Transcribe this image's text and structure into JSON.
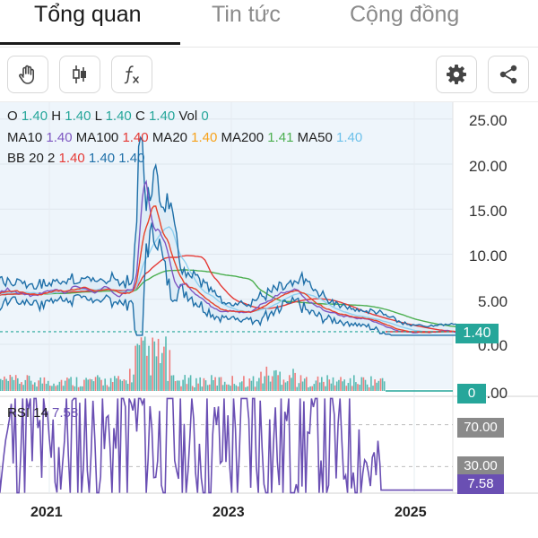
{
  "tabs": [
    {
      "label": "Tổng quan",
      "active": true
    },
    {
      "label": "Tin tức",
      "active": false
    },
    {
      "label": "Cộng đồng",
      "active": false
    }
  ],
  "toolbar": {
    "left": [
      {
        "name": "hand-cursor-icon"
      },
      {
        "name": "candlestick-icon"
      },
      {
        "name": "function-icon"
      }
    ],
    "right": [
      {
        "name": "gear-icon"
      },
      {
        "name": "share-icon"
      }
    ]
  },
  "legend": {
    "ohlc": {
      "o_label": "O",
      "o": "1.40",
      "h_label": "H",
      "h": "1.40",
      "l_label": "L",
      "l": "1.40",
      "c_label": "C",
      "c": "1.40",
      "vol_label": "Vol",
      "vol": "0"
    },
    "ma": {
      "ma10_label": "MA10",
      "ma10": "1.40",
      "ma100_label": "MA100",
      "ma100": "1.40",
      "ma20_label": "MA20",
      "ma20": "1.40",
      "ma200_label": "MA200",
      "ma200": "1.41",
      "ma50_label": "MA50",
      "ma50": "1.40"
    },
    "bb": {
      "label": "BB 20 2",
      "v1": "1.40",
      "v2": "1.40",
      "v3": "1.40"
    },
    "rsi": {
      "label": "RSI 14",
      "value": "7.58"
    }
  },
  "colors": {
    "accent": "#26a69a",
    "ma10": "#7e57c2",
    "ma100": "#e53935",
    "ma20": "#f7a21b",
    "ma200": "#4caf50",
    "ma50": "#8fd0f0",
    "bb": "#1e6fa8",
    "up": "#26a69a",
    "down": "#ef5350",
    "rsi": "#6a4fb3"
  },
  "price_axis": {
    "ticks": [
      "25.00",
      "20.00",
      "15.00",
      "10.00",
      "5.00",
      "0.00"
    ],
    "last": "1.40"
  },
  "volume_axis": {
    "tick": "0.00",
    "last": "0"
  },
  "rsi_axis": {
    "levels": [
      "70.00",
      "30.00"
    ],
    "last": "7.58"
  },
  "time_axis": {
    "labels": [
      "2021",
      "2023",
      "2025"
    ]
  },
  "chart_data": [
    {
      "type": "line",
      "panel": "price",
      "x": [
        "2020-01",
        "2020-04",
        "2020-07",
        "2020-10",
        "2021-01",
        "2021-04",
        "2021-07",
        "2021-10",
        "2021-12",
        "2022-01",
        "2022-02",
        "2022-03",
        "2022-04",
        "2022-05",
        "2022-07",
        "2022-09",
        "2022-11",
        "2023-01",
        "2023-03",
        "2023-05",
        "2023-07",
        "2023-09",
        "2023-11",
        "2024-01",
        "2024-03",
        "2024-05",
        "2024-07",
        "2024-09",
        "2024-11",
        "2025-03",
        "2025-07"
      ],
      "series": [
        {
          "name": "Close",
          "values": [
            5.2,
            5.6,
            6.0,
            5.5,
            6.0,
            6.3,
            5.9,
            5.6,
            6.4,
            20.5,
            12.0,
            13.8,
            10.0,
            7.0,
            6.5,
            5.0,
            3.8,
            3.5,
            3.9,
            4.6,
            5.4,
            5.8,
            4.4,
            3.6,
            3.3,
            3.0,
            2.6,
            2.0,
            1.4,
            1.4,
            1.4
          ]
        }
      ],
      "ylim": [
        0,
        25
      ],
      "grid": true
    },
    {
      "type": "bar",
      "panel": "volume",
      "values": [],
      "last": 0
    },
    {
      "type": "line",
      "panel": "rsi",
      "series": [
        {
          "name": "RSI 14",
          "values": [
            50,
            75,
            48,
            62,
            40,
            60,
            45,
            55,
            70,
            80,
            62,
            55,
            45,
            50,
            38,
            52,
            45,
            58,
            72,
            50,
            48,
            62,
            50,
            58,
            42,
            55,
            30,
            20,
            10,
            7.58,
            7.58
          ]
        }
      ],
      "levels": [
        70,
        30
      ]
    }
  ]
}
